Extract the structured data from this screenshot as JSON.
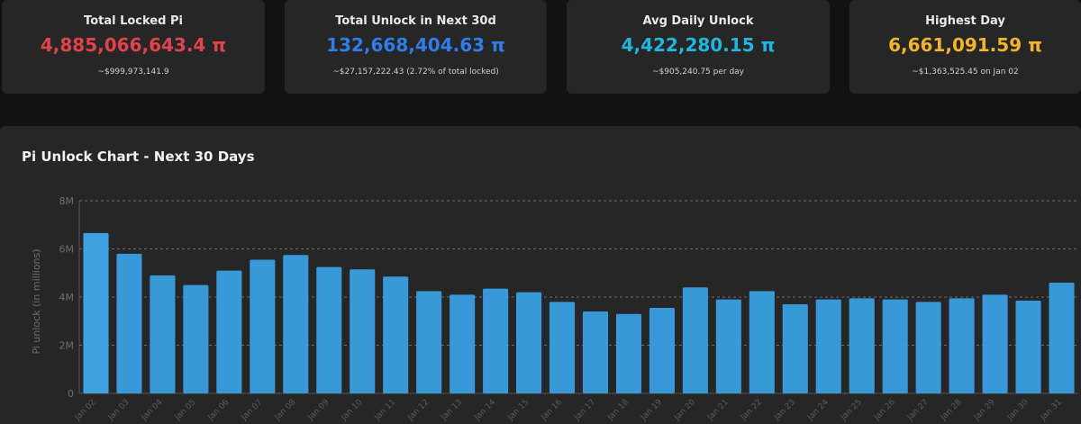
{
  "cards": [
    {
      "label": "Total Locked Pi",
      "value": "4,885,066,643.4 π",
      "sub": "~$999,973,141.9",
      "color": "#e0434c"
    },
    {
      "label": "Total Unlock in Next 30d",
      "value": "132,668,404.63 π",
      "sub": "~$27,157,222.43 (2.72% of total locked)",
      "color": "#2f7de6"
    },
    {
      "label": "Avg Daily Unlock",
      "value": "4,422,280.15 π",
      "sub": "~$905,240.75 per day",
      "color": "#1fb6e0"
    },
    {
      "label": "Highest Day",
      "value": "6,661,091.59 π",
      "sub": "~$1,363,525.45 on Jan 02",
      "color": "#f2b52a"
    }
  ],
  "panel": {
    "title": "Pi Unlock Chart - Next 30 Days"
  },
  "chart_data": {
    "type": "bar",
    "title": "Pi Unlock Chart - Next 30 Days",
    "ylabel": "Pi unlock (in millions)",
    "xlabel": "",
    "ylim": [
      0,
      8
    ],
    "yticks": [
      0,
      2,
      4,
      6,
      8
    ],
    "ytick_labels": [
      "0",
      "2M",
      "4M",
      "6M",
      "8M"
    ],
    "grid": true,
    "bar_color": "#3a9ee0",
    "categories": [
      "Jan 02",
      "Jan 03",
      "Jan 04",
      "Jan 05",
      "Jan 06",
      "Jan 07",
      "Jan 08",
      "Jan 09",
      "Jan 10",
      "Jan 11",
      "Jan 12",
      "Jan 13",
      "Jan 14",
      "Jan 15",
      "Jan 16",
      "Jan 17",
      "Jan 18",
      "Jan 19",
      "Jan 20",
      "Jan 21",
      "Jan 22",
      "Jan 23",
      "Jan 24",
      "Jan 25",
      "Jan 26",
      "Jan 27",
      "Jan 28",
      "Jan 29",
      "Jan 30",
      "Jan 31"
    ],
    "values": [
      6.66,
      5.8,
      4.9,
      4.5,
      5.1,
      5.55,
      5.75,
      5.25,
      5.15,
      4.85,
      4.25,
      4.1,
      4.35,
      4.2,
      3.8,
      3.4,
      3.3,
      3.55,
      4.4,
      3.9,
      4.25,
      3.7,
      3.9,
      3.95,
      3.9,
      3.8,
      3.95,
      4.1,
      3.85,
      4.6
    ]
  }
}
